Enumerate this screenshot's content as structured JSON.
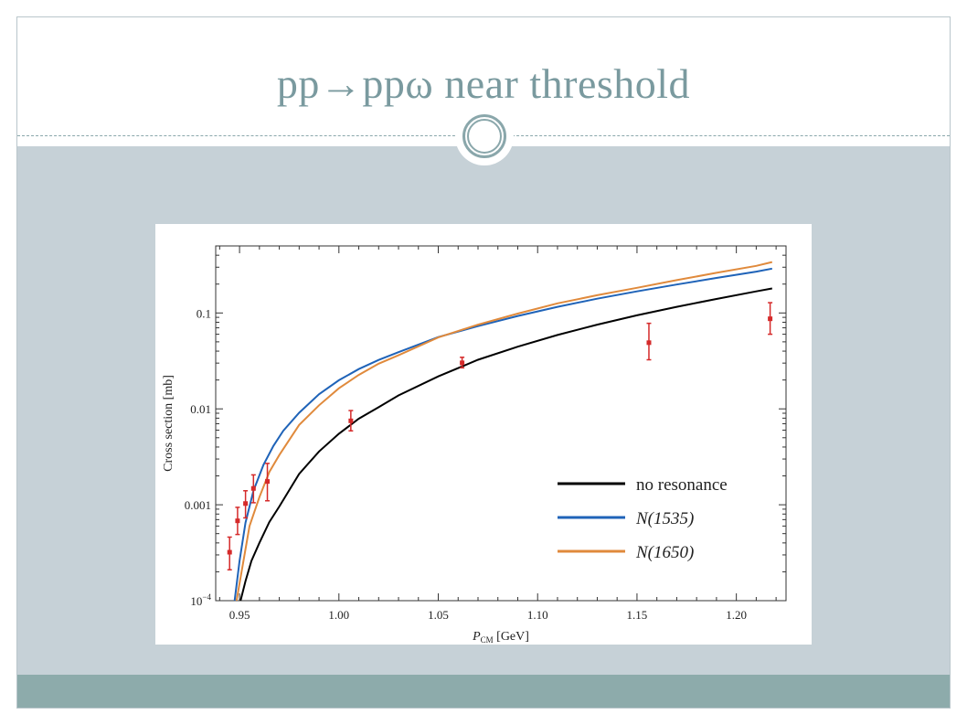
{
  "slide": {
    "title": "pp→ppω near threshold"
  },
  "colors": {
    "title": "#7a9a9f",
    "content_bg": "#c6d1d7",
    "footer_bg": "#8dabab"
  },
  "chart_data": {
    "type": "line",
    "xlabel": "P_CM [GeV]",
    "xlabel_main": "P",
    "xlabel_sub": "CM",
    "xlabel_unit": " [GeV]",
    "ylabel": "Cross section [mb]",
    "xlim": [
      0.938,
      1.225
    ],
    "ylim": [
      0.0001,
      0.5
    ],
    "y_scale": "log",
    "grid": false,
    "legend_position": "bottom-right",
    "x_ticks": [
      {
        "value": 0.95,
        "label": "0.95"
      },
      {
        "value": 1.0,
        "label": "1.00"
      },
      {
        "value": 1.05,
        "label": "1.05"
      },
      {
        "value": 1.1,
        "label": "1.10"
      },
      {
        "value": 1.15,
        "label": "1.15"
      },
      {
        "value": 1.2,
        "label": "1.20"
      }
    ],
    "y_ticks": [
      {
        "value": 0.0001,
        "label": "10",
        "sup": "−4"
      },
      {
        "value": 0.001,
        "label": "0.001",
        "sup": ""
      },
      {
        "value": 0.01,
        "label": "0.01",
        "sup": ""
      },
      {
        "value": 0.1,
        "label": "0.1",
        "sup": ""
      }
    ],
    "series": [
      {
        "name": "no resonance",
        "color": "#000000",
        "x": [
          0.9505,
          0.953,
          0.956,
          0.96,
          0.965,
          0.97,
          0.98,
          0.99,
          1.0,
          1.01,
          1.02,
          1.03,
          1.05,
          1.07,
          1.09,
          1.11,
          1.13,
          1.15,
          1.17,
          1.19,
          1.21,
          1.218
        ],
        "y": [
          0.0001,
          0.00016,
          0.00026,
          0.0004,
          0.00066,
          0.00096,
          0.0021,
          0.0036,
          0.0055,
          0.0079,
          0.0104,
          0.0138,
          0.0218,
          0.0325,
          0.0445,
          0.059,
          0.0755,
          0.0945,
          0.116,
          0.14,
          0.168,
          0.18
        ]
      },
      {
        "name": "N(1535)",
        "color": "#1f63b8",
        "x": [
          0.9475,
          0.95,
          0.953,
          0.957,
          0.962,
          0.967,
          0.972,
          0.98,
          0.99,
          1.0,
          1.01,
          1.02,
          1.03,
          1.05,
          1.07,
          1.09,
          1.11,
          1.13,
          1.15,
          1.17,
          1.19,
          1.21,
          1.218
        ],
        "y": [
          0.0001,
          0.00026,
          0.00065,
          0.0014,
          0.0026,
          0.0041,
          0.0059,
          0.0091,
          0.0142,
          0.0199,
          0.026,
          0.0324,
          0.039,
          0.056,
          0.073,
          0.093,
          0.116,
          0.141,
          0.168,
          0.198,
          0.232,
          0.27,
          0.29
        ]
      },
      {
        "name": "N(1650)",
        "color": "#e08a3c",
        "x": [
          0.9485,
          0.951,
          0.955,
          0.96,
          0.965,
          0.97,
          0.98,
          0.99,
          1.0,
          1.01,
          1.02,
          1.03,
          1.05,
          1.07,
          1.09,
          1.11,
          1.13,
          1.15,
          1.17,
          1.19,
          1.21,
          1.218
        ],
        "y": [
          0.0001,
          0.0002,
          0.0006,
          0.0012,
          0.0022,
          0.0033,
          0.0068,
          0.0109,
          0.0164,
          0.0226,
          0.0296,
          0.0362,
          0.0556,
          0.0755,
          0.0985,
          0.126,
          0.153,
          0.183,
          0.22,
          0.262,
          0.31,
          0.34
        ]
      }
    ],
    "data_points": {
      "name": "data",
      "color": "#d52a2a",
      "points": [
        {
          "x": 0.945,
          "y": 0.00032,
          "y_low": 0.00021,
          "y_high": 0.00046
        },
        {
          "x": 0.949,
          "y": 0.00068,
          "y_low": 0.00049,
          "y_high": 0.00094
        },
        {
          "x": 0.953,
          "y": 0.00103,
          "y_low": 0.00073,
          "y_high": 0.0014
        },
        {
          "x": 0.957,
          "y": 0.00148,
          "y_low": 0.00105,
          "y_high": 0.00205
        },
        {
          "x": 0.964,
          "y": 0.00175,
          "y_low": 0.0011,
          "y_high": 0.0027
        },
        {
          "x": 1.006,
          "y": 0.0075,
          "y_low": 0.0059,
          "y_high": 0.0096
        },
        {
          "x": 1.062,
          "y": 0.0302,
          "y_low": 0.0268,
          "y_high": 0.0345
        },
        {
          "x": 1.156,
          "y": 0.049,
          "y_low": 0.0325,
          "y_high": 0.078
        },
        {
          "x": 1.217,
          "y": 0.087,
          "y_low": 0.06,
          "y_high": 0.128
        }
      ]
    }
  }
}
